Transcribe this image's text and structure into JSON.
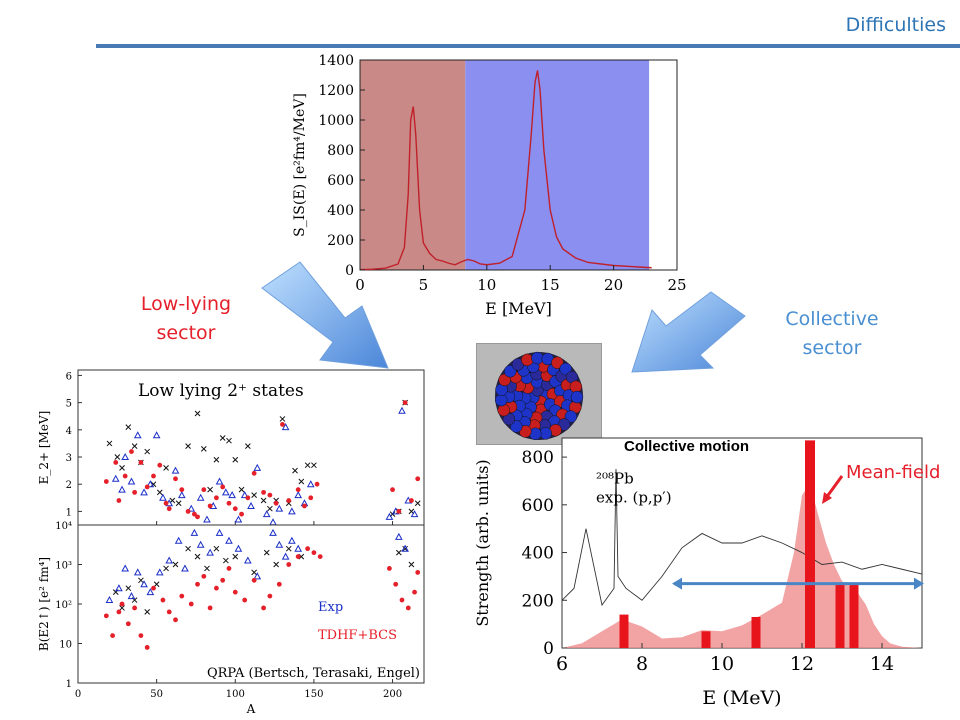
{
  "header": {
    "title": "Difficulties"
  },
  "labels": {
    "low_lying": [
      "Low-lying",
      "sector"
    ],
    "collective": [
      "Collective",
      "sector"
    ],
    "mean_field": "Mean-field",
    "collective_motion": "Collective motion"
  },
  "colors": {
    "red": "#e5202a",
    "blue": "#2e75b6",
    "exp_blue": "#1a2ec8",
    "black": "#111111",
    "shade_red": "#c98a87",
    "shade_blue": "#8a8ff0"
  },
  "chart_data": [
    {
      "type": "line",
      "xlabel": "E [MeV]",
      "ylabel": "S_IS(E) [e²fm⁴/MeV]",
      "xlim": [
        0,
        25
      ],
      "ylim": [
        0,
        1400
      ],
      "xticks": [
        "0",
        "5",
        "10",
        "15",
        "20",
        "25"
      ],
      "yticks": [
        "0",
        "200",
        "400",
        "600",
        "800",
        "1000",
        "1200",
        "1400"
      ],
      "regions": [
        {
          "name": "low-lying",
          "x0": 0,
          "x1": 8.3,
          "color": "shade_red"
        },
        {
          "name": "collective",
          "x0": 8.3,
          "x1": 22.8,
          "color": "shade_blue"
        }
      ],
      "x": [
        0,
        1,
        2,
        3,
        3.5,
        3.8,
        4.0,
        4.2,
        4.4,
        4.7,
        5.0,
        5.5,
        6.0,
        6.5,
        7.0,
        7.5,
        8.0,
        8.5,
        9.0,
        9.5,
        10.0,
        11.0,
        12.0,
        13.0,
        13.5,
        13.8,
        14.0,
        14.2,
        14.5,
        15.0,
        15.5,
        16.0,
        17.0,
        18.0,
        20.0,
        22.0,
        23.0
      ],
      "y": [
        2,
        5,
        12,
        40,
        150,
        500,
        1000,
        1090,
        900,
        400,
        180,
        110,
        70,
        60,
        45,
        35,
        55,
        70,
        60,
        40,
        35,
        45,
        90,
        400,
        900,
        1250,
        1330,
        1200,
        800,
        400,
        220,
        140,
        80,
        50,
        30,
        20,
        15
      ]
    },
    {
      "type": "scatter",
      "title": "Low lying 2⁺ states",
      "xlabel": "A",
      "ylabel": "E_2+ [MeV]",
      "xlim": [
        0,
        220
      ],
      "ylim": [
        0.5,
        6.2
      ],
      "yticks": [
        "1",
        "2",
        "3",
        "4",
        "5",
        "6"
      ],
      "series": [
        {
          "marker": "cross",
          "x": [
            20,
            25,
            28,
            32,
            36,
            40,
            44,
            48,
            52,
            56,
            60,
            64,
            70,
            76,
            80,
            84,
            88,
            92,
            96,
            100,
            104,
            108,
            112,
            118,
            122,
            126,
            130,
            134,
            138,
            142,
            146,
            150,
            200,
            204,
            208,
            212,
            216
          ],
          "y": [
            3.5,
            3.0,
            2.6,
            4.1,
            3.4,
            2.8,
            3.2,
            2.0,
            1.7,
            2.6,
            1.4,
            1.3,
            3.4,
            4.6,
            3.3,
            1.8,
            2.9,
            3.7,
            3.6,
            2.9,
            1.8,
            3.4,
            1.6,
            1.4,
            1.1,
            1.4,
            4.4,
            1.3,
            2.5,
            2.1,
            2.7,
            2.7,
            0.9,
            1.0,
            5.0,
            1.0,
            1.3
          ]
        },
        {
          "marker": "triangle",
          "name": "Exp",
          "x": [
            24,
            28,
            30,
            34,
            38,
            42,
            46,
            50,
            54,
            58,
            62,
            66,
            72,
            78,
            82,
            86,
            90,
            94,
            98,
            102,
            106,
            110,
            114,
            120,
            124,
            128,
            132,
            136,
            140,
            144,
            148,
            198,
            202,
            206,
            210,
            214
          ],
          "y": [
            2.2,
            1.8,
            3.0,
            2.1,
            3.8,
            1.7,
            2.0,
            3.8,
            1.5,
            1.3,
            2.5,
            1.6,
            1.1,
            1.5,
            0.7,
            1.2,
            2.1,
            1.7,
            1.6,
            0.7,
            1.6,
            1.2,
            2.6,
            0.9,
            0.6,
            1.1,
            4.1,
            1.0,
            1.6,
            1.3,
            2.0,
            0.8,
            1.0,
            4.7,
            1.4,
            0.9
          ]
        },
        {
          "marker": "dot",
          "name": "TDHF+BCS",
          "x": [
            18,
            24,
            26,
            30,
            34,
            36,
            40,
            44,
            48,
            52,
            56,
            58,
            62,
            66,
            70,
            74,
            76,
            80,
            84,
            88,
            92,
            96,
            100,
            104,
            108,
            112,
            118,
            122,
            126,
            130,
            134,
            140,
            144,
            148,
            152,
            200,
            204,
            208,
            212,
            216
          ],
          "y": [
            2.1,
            2.8,
            1.4,
            2.3,
            3.2,
            1.7,
            2.8,
            1.9,
            2.3,
            2.7,
            1.3,
            1.1,
            2.2,
            1.8,
            1.0,
            0.9,
            0.8,
            1.8,
            1.2,
            1.5,
            1.9,
            1.3,
            1.1,
            0.9,
            1.5,
            2.4,
            1.7,
            1.6,
            1.3,
            4.2,
            1.4,
            1.8,
            1.2,
            1.5,
            2.0,
            1.8,
            1.0,
            5.0,
            1.4,
            2.2
          ]
        }
      ]
    },
    {
      "type": "scatter",
      "xlabel": "A",
      "ylabel": "B(E2↑) [e² fm⁴]",
      "xlim": [
        0,
        220
      ],
      "ylim_log10": [
        0,
        4
      ],
      "xticks": [
        "0",
        "50",
        "100",
        "150",
        "200"
      ],
      "yticks": [
        "1",
        "10",
        "10²",
        "10³",
        "10⁴"
      ],
      "series": [
        {
          "marker": "cross",
          "x": [
            24,
            28,
            32,
            36,
            40,
            44,
            50,
            56,
            62,
            70,
            76,
            82,
            88,
            94,
            100,
            112,
            120,
            126,
            134,
            142,
            204,
            208,
            212
          ],
          "y_log10": [
            2.3,
            1.9,
            2.4,
            2.1,
            2.6,
            1.8,
            2.5,
            2.9,
            3.0,
            3.4,
            3.2,
            2.9,
            3.4,
            3.1,
            3.2,
            2.8,
            3.3,
            3.0,
            3.4,
            3.2,
            3.3,
            3.4,
            3.0
          ]
        },
        {
          "marker": "triangle",
          "x": [
            20,
            26,
            30,
            34,
            38,
            42,
            46,
            52,
            58,
            64,
            68,
            74,
            78,
            84,
            90,
            96,
            102,
            108,
            114,
            124,
            128,
            132,
            136,
            140,
            204,
            208
          ],
          "y_log10": [
            2.1,
            2.4,
            2.9,
            2.2,
            2.8,
            2.5,
            2.3,
            2.8,
            3.1,
            3.6,
            2.9,
            3.8,
            3.5,
            3.3,
            3.8,
            3.6,
            3.4,
            3.1,
            2.7,
            3.8,
            3.5,
            3.2,
            3.6,
            3.4,
            3.7,
            3.4
          ]
        },
        {
          "marker": "dot",
          "x": [
            18,
            22,
            26,
            28,
            32,
            36,
            40,
            44,
            48,
            54,
            58,
            62,
            66,
            72,
            76,
            80,
            84,
            88,
            92,
            96,
            100,
            106,
            112,
            118,
            122,
            128,
            134,
            140,
            146,
            150,
            154,
            198,
            202,
            206,
            210,
            214,
            216
          ],
          "y_log10": [
            1.7,
            1.2,
            1.8,
            2.0,
            1.5,
            1.9,
            1.2,
            0.9,
            2.4,
            2.1,
            1.8,
            1.6,
            2.2,
            2.0,
            2.5,
            2.7,
            1.9,
            2.4,
            2.6,
            2.9,
            2.3,
            2.1,
            2.6,
            1.9,
            2.2,
            2.5,
            3.0,
            3.2,
            3.4,
            3.3,
            3.2,
            2.9,
            2.5,
            2.1,
            1.9,
            2.3,
            2.8
          ]
        }
      ],
      "legend": [
        "Exp",
        "TDHF+BCS"
      ],
      "annotation": "QRPA (Bertsch, Terasaki, Engel)"
    },
    {
      "type": "bar",
      "xlabel": "E (MeV)",
      "ylabel": "Strength (arb. units)",
      "xlim": [
        6,
        15
      ],
      "ylim": [
        0,
        880
      ],
      "xticks": [
        "6",
        "8",
        "10",
        "12",
        "14"
      ],
      "yticks": [
        "0",
        "200",
        "400",
        "600",
        "800"
      ],
      "annotations": [
        "²⁰⁸Pb",
        "exp. (p,p′)"
      ],
      "bars_x": [
        7.55,
        9.6,
        10.85,
        12.2,
        12.95,
        13.3
      ],
      "bars_y": [
        140,
        70,
        130,
        870,
        270,
        270
      ],
      "envelope_x": [
        6.0,
        6.5,
        7.0,
        7.5,
        8.0,
        8.5,
        9.0,
        9.5,
        10.0,
        10.5,
        11.0,
        11.5,
        11.8,
        12.0,
        12.2,
        12.4,
        12.6,
        12.8,
        13.0,
        13.2,
        13.4,
        13.6,
        13.8,
        14.0,
        14.2,
        14.5,
        15.0
      ],
      "envelope_y": [
        0,
        20,
        70,
        120,
        90,
        40,
        45,
        75,
        70,
        95,
        140,
        190,
        400,
        640,
        690,
        560,
        440,
        350,
        280,
        260,
        230,
        180,
        100,
        50,
        20,
        5,
        0
      ],
      "exp_x": [
        6.0,
        6.3,
        6.6,
        7.0,
        7.3,
        7.35,
        7.4,
        7.6,
        8.0,
        8.5,
        9.0,
        9.5,
        10.0,
        10.5,
        11.0,
        11.5,
        12.0,
        12.5,
        13.0,
        13.5,
        14.0,
        14.5,
        15.0
      ],
      "exp_y": [
        200,
        250,
        500,
        180,
        250,
        750,
        300,
        250,
        200,
        300,
        420,
        480,
        440,
        440,
        470,
        440,
        400,
        350,
        360,
        330,
        350,
        330,
        310
      ],
      "arrow_x": [
        8.8,
        15.0
      ],
      "arrow_y": 270
    }
  ]
}
